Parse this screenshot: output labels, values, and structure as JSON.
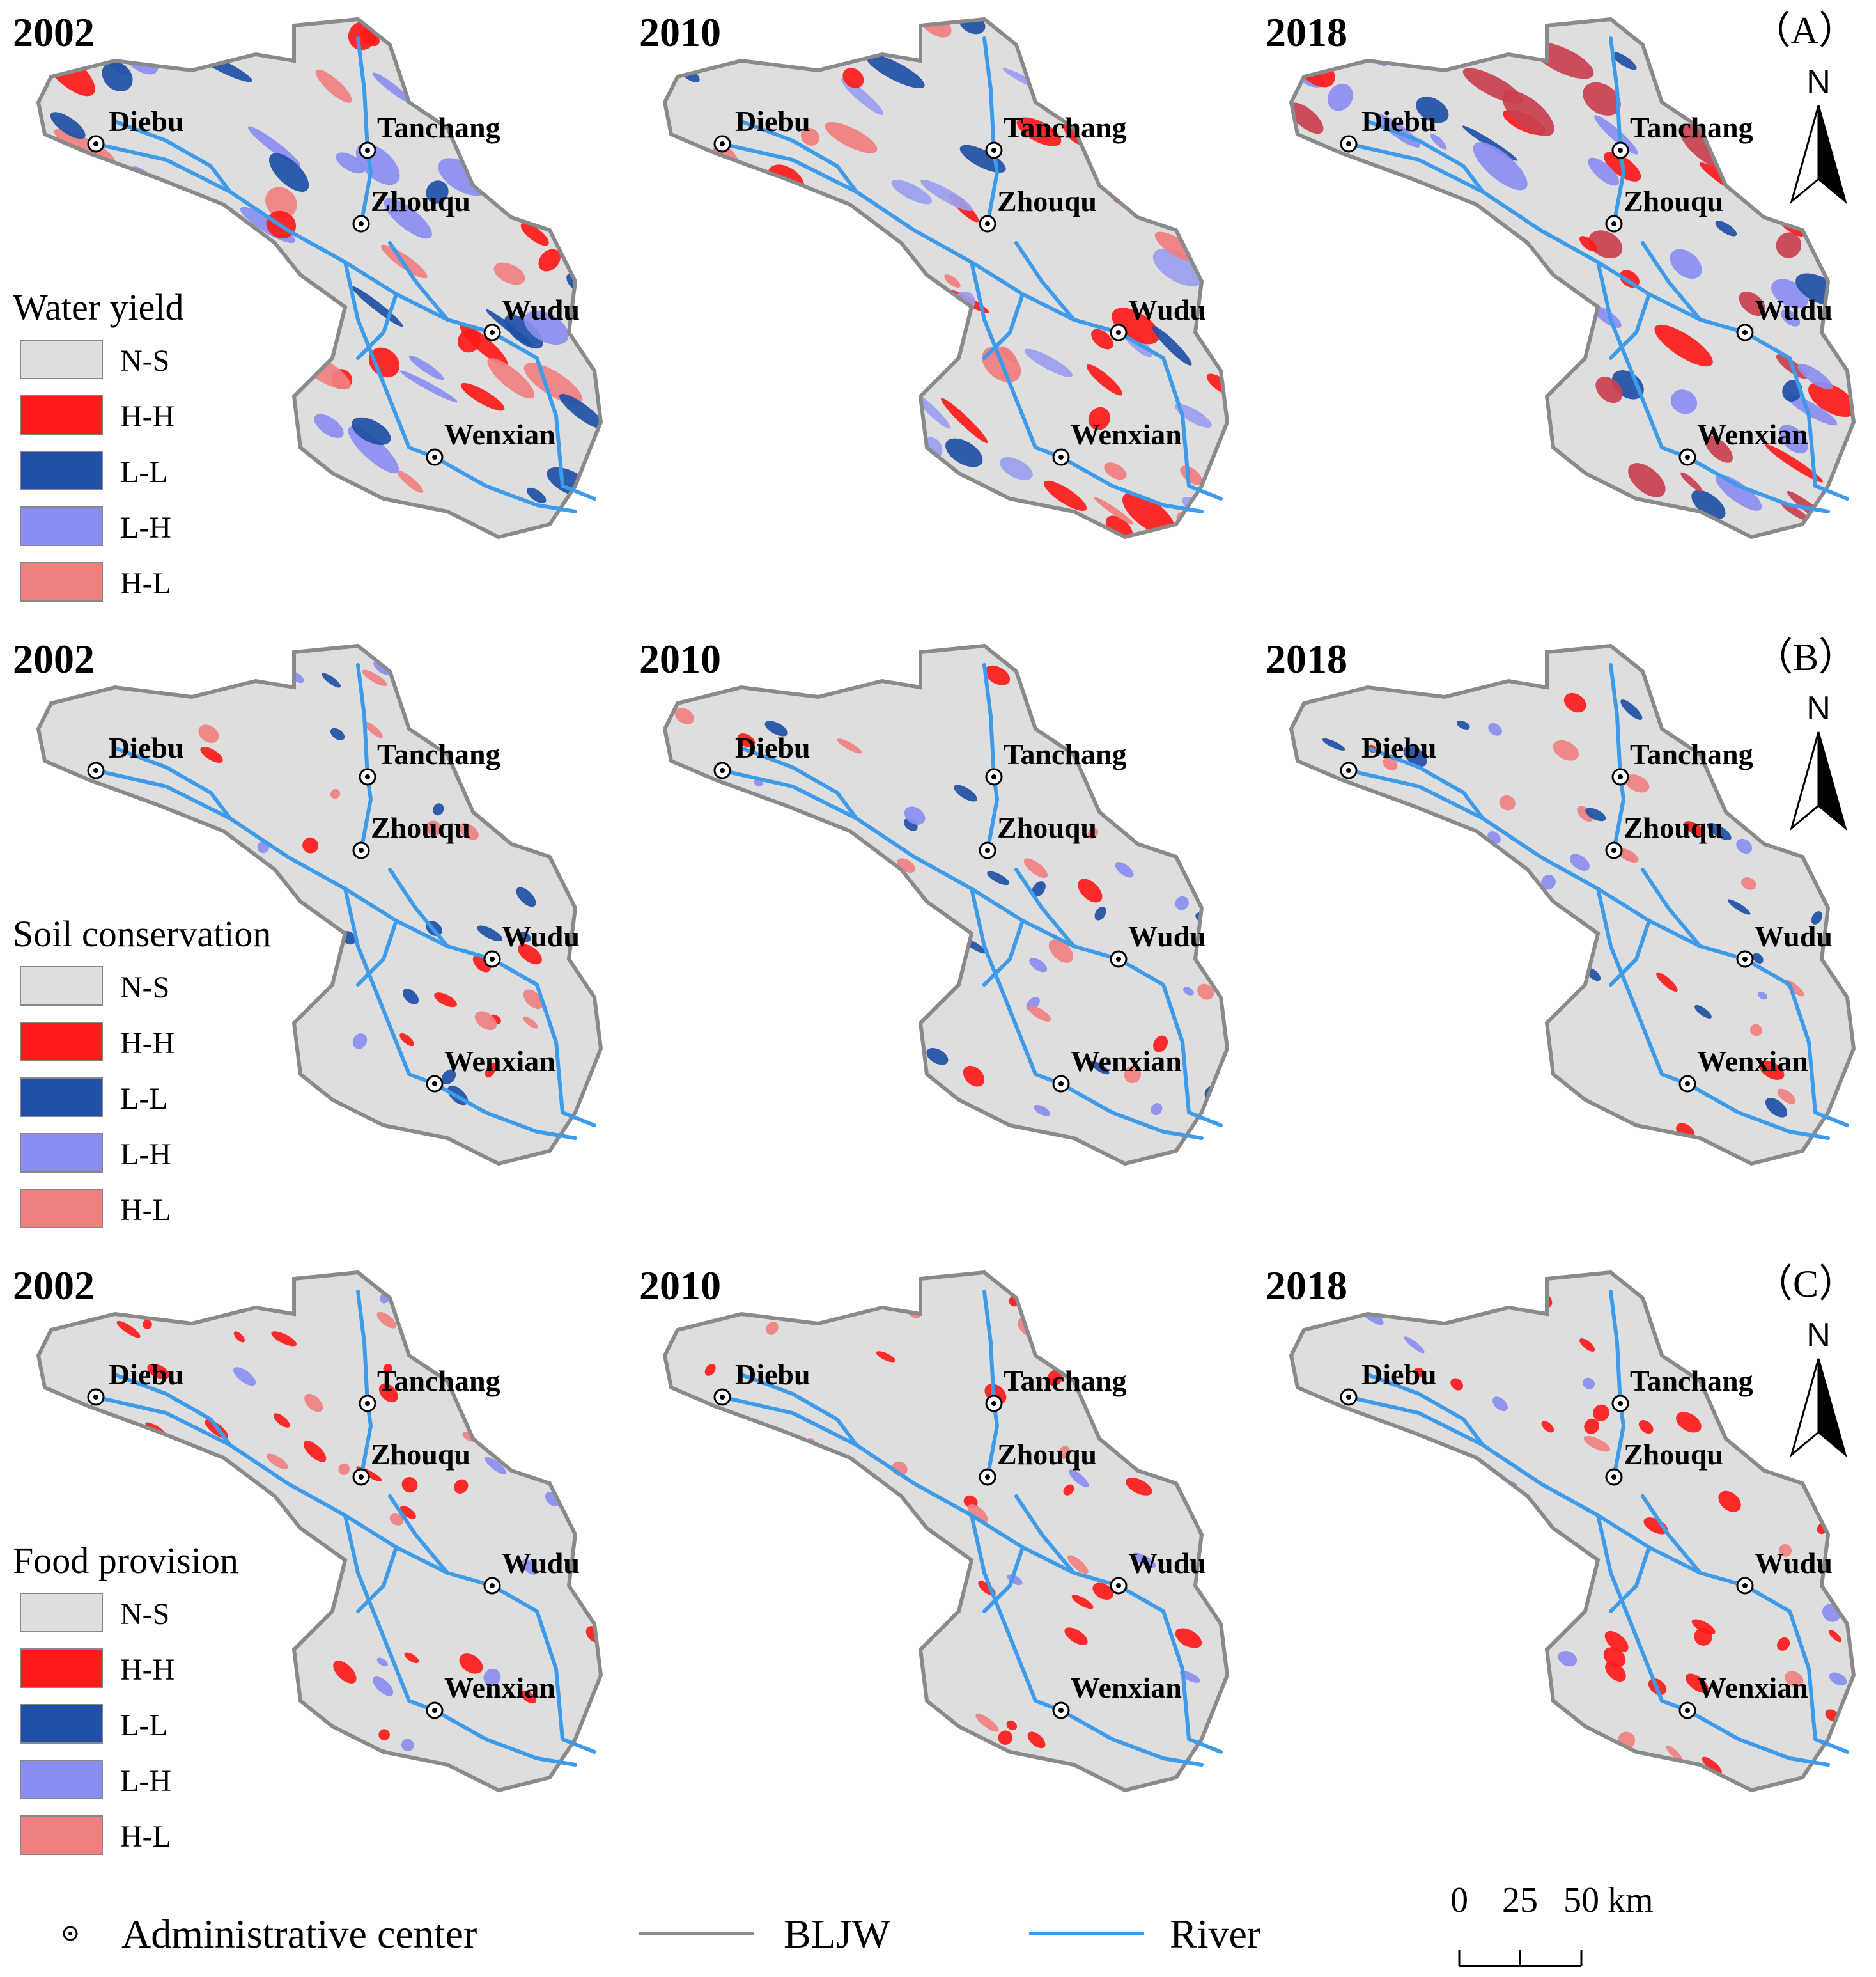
{
  "panels": [
    {
      "id": "A",
      "letter_label": "（A）",
      "legend_title": "Water yield",
      "years": [
        "2002",
        "2010",
        "2018"
      ],
      "dominant": [
        {
          "a": "#f08080",
          "b": "#1f4fa6",
          "c": "#8a8ef0",
          "d": "#ff1a1a"
        },
        {
          "a": "#f07d7d",
          "b": "#1f4fa6",
          "c": "#9a9ef0",
          "d": "#ff1a1a"
        },
        {
          "a": "#c94050",
          "b": "#1f4fa6",
          "c": "#8a8ef0",
          "d": "#ff1a1a"
        }
      ]
    },
    {
      "id": "B",
      "letter_label": "（B）",
      "legend_title": "Soil conservation",
      "years": [
        "2002",
        "2010",
        "2018"
      ],
      "dominant": [
        {
          "a": "#ff1a1a",
          "b": "#1f4fa6",
          "c": "#8a8ef0",
          "d": "#f08080"
        },
        {
          "a": "#ff1a1a",
          "b": "#1f4fa6",
          "c": "#8a8ef0",
          "d": "#f08080"
        },
        {
          "a": "#ff1a1a",
          "b": "#1f4fa6",
          "c": "#8a8ef0",
          "d": "#f08080"
        }
      ]
    },
    {
      "id": "C",
      "letter_label": "（C）",
      "legend_title": "Food provision",
      "years": [
        "2002",
        "2010",
        "2018"
      ],
      "dominant": [
        {
          "a": "#ff1a1a",
          "b": "#8a8ef0",
          "c": "#f08080",
          "d": "#ff1a1a"
        },
        {
          "a": "#ff1a1a",
          "b": "#8a8ef0",
          "c": "#f08080",
          "d": "#ff1a1a"
        },
        {
          "a": "#ff1a1a",
          "b": "#8a8ef0",
          "c": "#f08080",
          "d": "#ff1a1a"
        }
      ]
    }
  ],
  "legend_classes": [
    {
      "label": "N-S",
      "color": "#dedede"
    },
    {
      "label": "H-H",
      "color": "#ff1a1a"
    },
    {
      "label": "L-L",
      "color": "#1f4fa6"
    },
    {
      "label": "L-H",
      "color": "#8a8ef0"
    },
    {
      "label": "H-L",
      "color": "#f08080"
    }
  ],
  "towns": [
    "Diebu",
    "Tanchang",
    "Zhouqu",
    "Wudu",
    "Wenxian"
  ],
  "north_label": "N",
  "bottom_legend": {
    "admin_center": "Administrative center",
    "boundary": "BLJW",
    "river": "River"
  },
  "scale_bar": {
    "ticks": [
      "0",
      "25",
      "50"
    ],
    "unit": "km"
  },
  "colors": {
    "background_region": "#dedede",
    "boundary": "#8a8a8a",
    "river": "#3d9be9"
  }
}
